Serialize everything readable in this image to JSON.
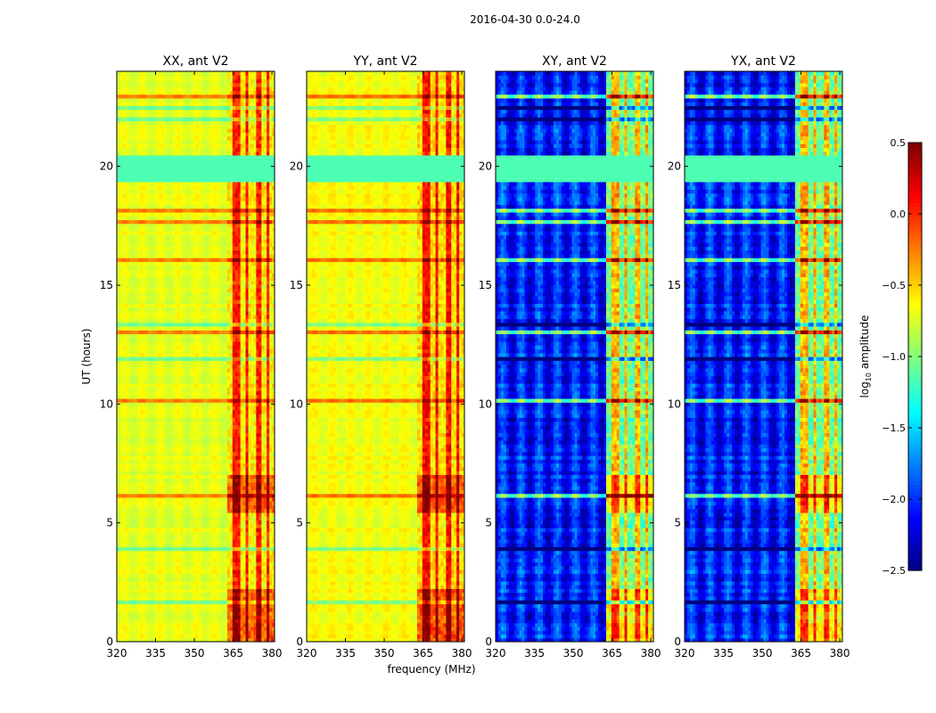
{
  "figure": {
    "suptitle": "2016-04-30 0.0-24.0",
    "xlabel": "frequency (MHz)",
    "ylabel": "UT (hours)"
  },
  "colorbar": {
    "label_prefix": "log",
    "label_sub": "10",
    "label_suffix": " amplitude",
    "range": [
      -2.5,
      0.5
    ],
    "ticks": [
      0.5,
      0.0,
      -0.5,
      -1.0,
      -1.5,
      -2.0,
      -2.5
    ],
    "tick_labels": [
      "0.5",
      "0.0",
      "−0.5",
      "−1.0",
      "−1.5",
      "−2.0",
      "−2.5"
    ],
    "colormap": "jet"
  },
  "colors": {
    "axis": "#000000",
    "background": "#ffffff"
  },
  "chart_data": [
    {
      "type": "heatmap",
      "title": "XX, ant V2",
      "polarization": "XX",
      "xlim": [
        320,
        381
      ],
      "ylim": [
        0,
        24
      ],
      "xticks": [
        320,
        335,
        350,
        365,
        380
      ],
      "yticks": [
        0,
        5,
        10,
        15,
        20
      ],
      "base_level": -0.7,
      "rfi_band_mhz": [
        363,
        381
      ],
      "rfi_level": -0.1,
      "flag_band_ut": [
        19.3,
        20.4
      ],
      "flag_level": -1.15,
      "channels_mhz": [
        364,
        368.5,
        372.5,
        377,
        380
      ],
      "notes": "",
      "axis_labels": {
        "x": true,
        "y": true
      }
    },
    {
      "type": "heatmap",
      "title": "YY, ant V2",
      "polarization": "YY",
      "xlim": [
        320,
        381
      ],
      "ylim": [
        0,
        24
      ],
      "xticks": [
        320,
        335,
        350,
        365,
        380
      ],
      "yticks": [
        0,
        5,
        10,
        15,
        20
      ],
      "base_level": -0.65,
      "rfi_band_mhz": [
        363,
        381
      ],
      "rfi_level": -0.05,
      "flag_band_ut": [
        19.3,
        20.4
      ],
      "flag_level": -1.15,
      "channels_mhz": [
        364,
        368.5,
        372.5,
        377,
        380
      ],
      "notes": "",
      "axis_labels": {
        "x": true,
        "y": false
      }
    },
    {
      "type": "heatmap",
      "title": "XY, ant V2",
      "polarization": "XY",
      "xlim": [
        320,
        381
      ],
      "ylim": [
        0,
        24
      ],
      "xticks": [
        320,
        335,
        350,
        365,
        380
      ],
      "yticks": [
        0,
        5,
        10,
        15,
        20
      ],
      "base_level": -2.05,
      "rfi_band_mhz": [
        363,
        381
      ],
      "rfi_level": -0.55,
      "flag_band_ut": [
        19.3,
        20.4
      ],
      "flag_level": -1.15,
      "channels_mhz": [
        364,
        368.5,
        372.5,
        377,
        380
      ],
      "notes": "",
      "axis_labels": {
        "x": false,
        "y": false
      }
    },
    {
      "type": "heatmap",
      "title": "YX, ant V2",
      "polarization": "YX",
      "xlim": [
        320,
        381
      ],
      "ylim": [
        0,
        24
      ],
      "xticks": [
        320,
        335,
        350,
        365,
        380
      ],
      "yticks": [
        0,
        5,
        10,
        15,
        20
      ],
      "base_level": -2.05,
      "rfi_band_mhz": [
        363,
        381
      ],
      "rfi_level": -0.55,
      "flag_band_ut": [
        19.3,
        20.4
      ],
      "flag_level": -1.15,
      "channels_mhz": [
        364,
        368.5,
        372.5,
        377,
        380
      ],
      "notes": "",
      "axis_labels": {
        "x": false,
        "y": false
      }
    }
  ]
}
